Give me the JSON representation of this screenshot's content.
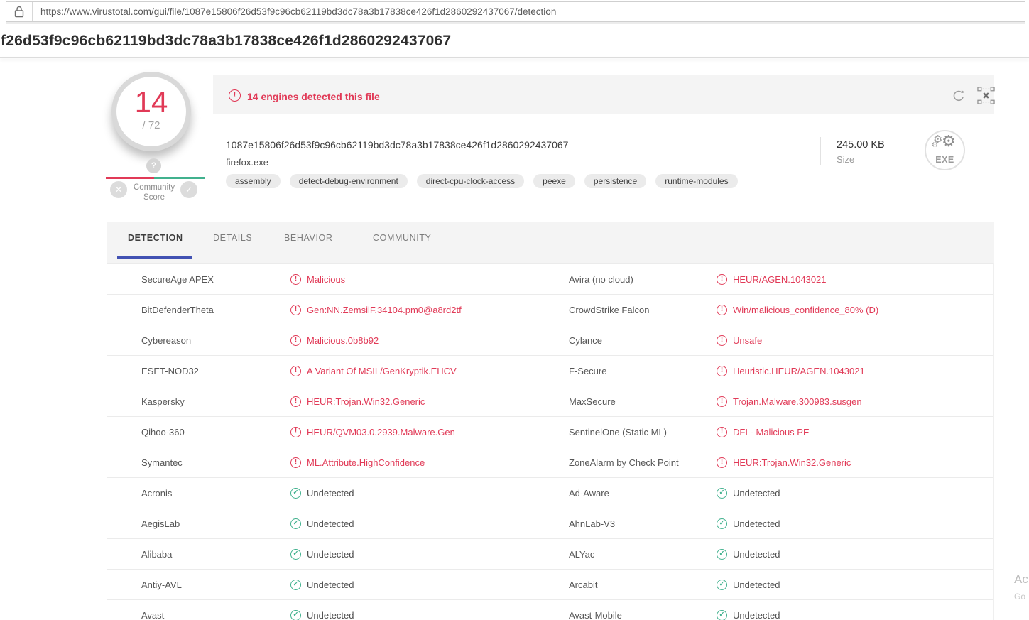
{
  "colors": {
    "red": "#e13a57",
    "green": "#41b18e",
    "tab_underline_blue": "#4252b3"
  },
  "browser": {
    "url": "https://www.virustotal.com/gui/file/1087e15806f26d53f9c96cb62119bd3dc78a3b17838ce426f1d2860292437067/detection"
  },
  "page_header": {
    "hash": "f26d53f9c96cb62119bd3dc78a3b17838ce426f1d2860292437067"
  },
  "score_widget": {
    "detections": "14",
    "total": "/ 72",
    "tooltip_glyph": "?",
    "community_line1": "Community",
    "community_line2": "Score",
    "downvote_glyph": "✕",
    "upvote_glyph": "✓"
  },
  "banner": {
    "alert_glyph": "!",
    "message": "14 engines detected this file"
  },
  "file_info": {
    "sha256": "1087e15806f26d53f9c96cb62119bd3dc78a3b17838ce426f1d2860292437067",
    "filename": "firefox.exe",
    "tags": [
      "assembly",
      "detect-debug-environment",
      "direct-cpu-clock-access",
      "peexe",
      "persistence",
      "runtime-modules"
    ],
    "size_value": "245.00 KB",
    "size_label": "Size",
    "file_type_label": "EXE"
  },
  "tabs": [
    {
      "label": "DETECTION",
      "active": true
    },
    {
      "label": "DETAILS",
      "active": false
    },
    {
      "label": "BEHAVIOR",
      "active": false
    },
    {
      "label": "COMMUNITY",
      "active": false
    }
  ],
  "detections": {
    "left": [
      {
        "engine": "SecureAge APEX",
        "result": "Malicious",
        "status": "malicious"
      },
      {
        "engine": "BitDefenderTheta",
        "result": "Gen:NN.ZemsilF.34104.pm0@a8rd2tf",
        "status": "malicious"
      },
      {
        "engine": "Cybereason",
        "result": "Malicious.0b8b92",
        "status": "malicious"
      },
      {
        "engine": "ESET-NOD32",
        "result": "A Variant Of MSIL/GenKryptik.EHCV",
        "status": "malicious"
      },
      {
        "engine": "Kaspersky",
        "result": "HEUR:Trojan.Win32.Generic",
        "status": "malicious"
      },
      {
        "engine": "Qihoo-360",
        "result": "HEUR/QVM03.0.2939.Malware.Gen",
        "status": "malicious"
      },
      {
        "engine": "Symantec",
        "result": "ML.Attribute.HighConfidence",
        "status": "malicious"
      },
      {
        "engine": "Acronis",
        "result": "Undetected",
        "status": "undetected"
      },
      {
        "engine": "AegisLab",
        "result": "Undetected",
        "status": "undetected"
      },
      {
        "engine": "Alibaba",
        "result": "Undetected",
        "status": "undetected"
      },
      {
        "engine": "Antiy-AVL",
        "result": "Undetected",
        "status": "undetected"
      },
      {
        "engine": "Avast",
        "result": "Undetected",
        "status": "undetected"
      }
    ],
    "right": [
      {
        "engine": "Avira (no cloud)",
        "result": "HEUR/AGEN.1043021",
        "status": "malicious"
      },
      {
        "engine": "CrowdStrike Falcon",
        "result": "Win/malicious_confidence_80% (D)",
        "status": "malicious"
      },
      {
        "engine": "Cylance",
        "result": "Unsafe",
        "status": "malicious"
      },
      {
        "engine": "F-Secure",
        "result": "Heuristic.HEUR/AGEN.1043021",
        "status": "malicious"
      },
      {
        "engine": "MaxSecure",
        "result": "Trojan.Malware.300983.susgen",
        "status": "malicious"
      },
      {
        "engine": "SentinelOne (Static ML)",
        "result": "DFI - Malicious PE",
        "status": "malicious"
      },
      {
        "engine": "ZoneAlarm by Check Point",
        "result": "HEUR:Trojan.Win32.Generic",
        "status": "malicious"
      },
      {
        "engine": "Ad-Aware",
        "result": "Undetected",
        "status": "undetected"
      },
      {
        "engine": "AhnLab-V3",
        "result": "Undetected",
        "status": "undetected"
      },
      {
        "engine": "ALYac",
        "result": "Undetected",
        "status": "undetected"
      },
      {
        "engine": "Arcabit",
        "result": "Undetected",
        "status": "undetected"
      },
      {
        "engine": "Avast-Mobile",
        "result": "Undetected",
        "status": "undetected"
      }
    ]
  },
  "watermark": {
    "line1": "Ac",
    "line2": "Go"
  }
}
